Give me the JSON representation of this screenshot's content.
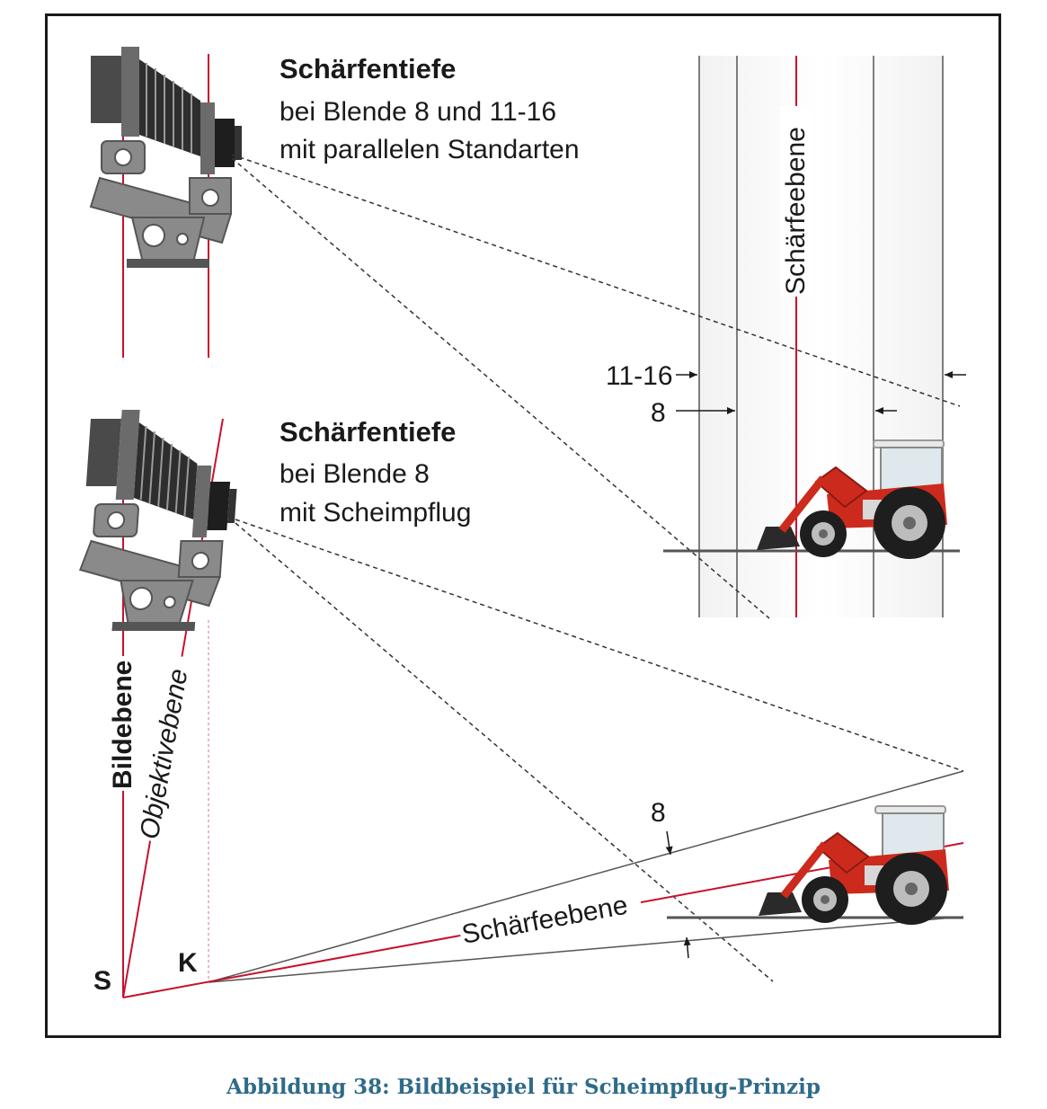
{
  "panel_top": {
    "heading": "Schärfentiefe",
    "line1": "bei Blende 8 und 11-16",
    "line2": "mit parallelen Standarten",
    "plane_label": "Schärfeebene",
    "aperture_wide": "11-16",
    "aperture_narrow": "8"
  },
  "panel_bottom": {
    "heading": "Schärfentiefe",
    "line1": "bei Blende 8",
    "line2": "mit Scheimpflug",
    "plane_label": "Schärfeebene",
    "aperture": "8",
    "image_plane_label": "Bildebene",
    "lens_plane_label": "Objektivebene",
    "point_s": "S",
    "point_k": "K"
  },
  "caption": "Abbildung 38: Bildbeispiel für Scheimpflug-Prinzip",
  "colors": {
    "plane_red": "#c8102e",
    "tractor_red": "#cc2a1d",
    "camera_gray": "#8a8a8a",
    "caption_blue": "#2f6b8a"
  }
}
